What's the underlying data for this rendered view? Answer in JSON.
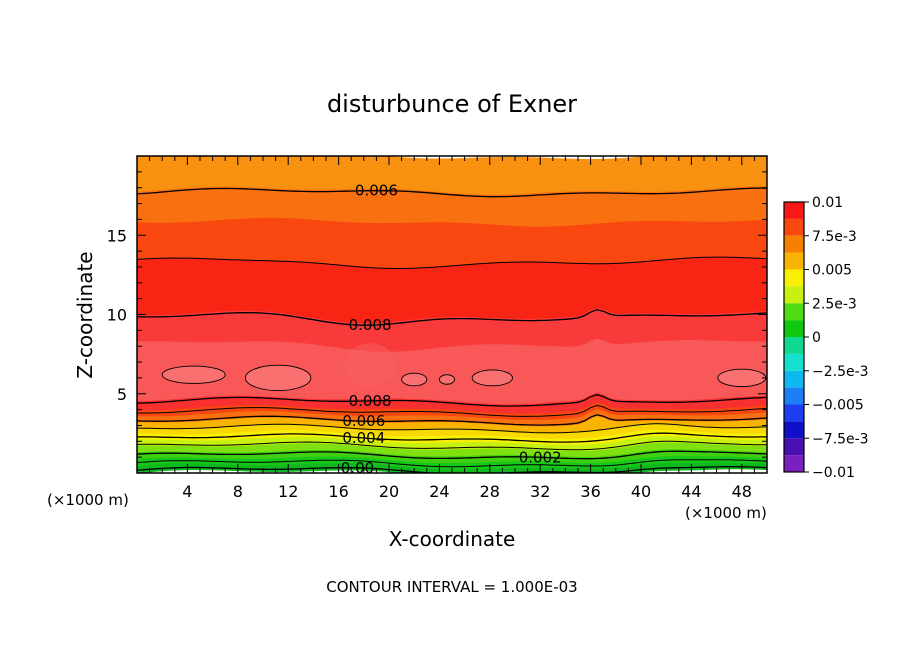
{
  "chart_data": {
    "type": "heatmap",
    "title": "disturbunce of Exner",
    "xlabel": "X-coordinate",
    "ylabel": "Z-coordinate",
    "x_unit_left": "(×1000 m)",
    "x_unit_right": "(×1000 m)",
    "footer": "CONTOUR INTERVAL = 1.000E-03",
    "xlim": [
      0,
      50
    ],
    "ylim": [
      0,
      20
    ],
    "x_ticks": [
      4,
      8,
      12,
      16,
      20,
      24,
      28,
      32,
      36,
      40,
      44,
      48
    ],
    "y_ticks": [
      5,
      10,
      15
    ],
    "colorbar": {
      "range": [
        -0.01,
        0.01
      ],
      "tick_labels": [
        "0.01",
        "7.5e-3",
        "0.005",
        "2.5e-3",
        "0",
        "−2.5e-3",
        "−0.005",
        "−7.5e-3",
        "−0.01"
      ],
      "tick_values": [
        0.01,
        0.0075,
        0.005,
        0.0025,
        0,
        -0.0025,
        -0.005,
        -0.0075,
        -0.01
      ],
      "bands": [
        {
          "from": -0.01,
          "to": -0.00875,
          "color": "#7a1fc0"
        },
        {
          "from": -0.00875,
          "to": -0.0075,
          "color": "#4a0fb0"
        },
        {
          "from": -0.0075,
          "to": -0.00625,
          "color": "#1010c8"
        },
        {
          "from": -0.00625,
          "to": -0.005,
          "color": "#1e3cf0"
        },
        {
          "from": -0.005,
          "to": -0.00375,
          "color": "#1e7ef5"
        },
        {
          "from": -0.00375,
          "to": -0.0025,
          "color": "#10b8f0"
        },
        {
          "from": -0.0025,
          "to": -0.00125,
          "color": "#14e0d0"
        },
        {
          "from": -0.00125,
          "to": 0,
          "color": "#10d890"
        },
        {
          "from": 0,
          "to": 0.00125,
          "color": "#10c810"
        },
        {
          "from": 0.00125,
          "to": 0.0025,
          "color": "#50dc10"
        },
        {
          "from": 0.0025,
          "to": 0.00375,
          "color": "#c8f010"
        },
        {
          "from": 0.00375,
          "to": 0.005,
          "color": "#f8f000"
        },
        {
          "from": 0.005,
          "to": 0.00625,
          "color": "#f8b400"
        },
        {
          "from": 0.00625,
          "to": 0.0075,
          "color": "#f88000"
        },
        {
          "from": 0.0075,
          "to": 0.00875,
          "color": "#f84810"
        },
        {
          "from": 0.00875,
          "to": 0.01,
          "color": "#f81818"
        }
      ]
    },
    "profile_z_values": [
      {
        "z": 0.0,
        "value": 0.0
      },
      {
        "z": 0.6,
        "value": 0.0005
      },
      {
        "z": 1.2,
        "value": 0.0015
      },
      {
        "z": 1.8,
        "value": 0.0025
      },
      {
        "z": 2.4,
        "value": 0.0035
      },
      {
        "z": 3.0,
        "value": 0.0048
      },
      {
        "z": 3.6,
        "value": 0.0062
      },
      {
        "z": 4.2,
        "value": 0.0072
      },
      {
        "z": 4.8,
        "value": 0.008
      },
      {
        "z": 6.0,
        "value": 0.0088
      },
      {
        "z": 8.0,
        "value": 0.0088
      },
      {
        "z": 10.0,
        "value": 0.008
      },
      {
        "z": 13.5,
        "value": 0.007
      },
      {
        "z": 17.5,
        "value": 0.006
      },
      {
        "z": 20.0,
        "value": 0.0052
      }
    ],
    "bands_by_height": [
      {
        "z_from": 17.8,
        "z_to": 20.0,
        "color": "#f89010"
      },
      {
        "z_from": 15.8,
        "z_to": 17.8,
        "color": "#f87010"
      },
      {
        "z_from": 13.4,
        "z_to": 15.8,
        "color": "#f84810"
      },
      {
        "z_from": 10.0,
        "z_to": 13.4,
        "color": "#f82414"
      },
      {
        "z_from": 8.2,
        "z_to": 10.0,
        "color": "#f83a3a"
      },
      {
        "z_from": 4.6,
        "z_to": 8.2,
        "color": "#f85858"
      },
      {
        "z_from": 4.0,
        "z_to": 4.6,
        "color": "#f83030"
      },
      {
        "z_from": 3.6,
        "z_to": 4.0,
        "color": "#f84810"
      },
      {
        "z_from": 3.2,
        "z_to": 3.6,
        "color": "#f87010"
      },
      {
        "z_from": 2.8,
        "z_to": 3.2,
        "color": "#f8b400"
      },
      {
        "z_from": 2.4,
        "z_to": 2.8,
        "color": "#f8d800"
      },
      {
        "z_from": 2.0,
        "z_to": 2.4,
        "color": "#f8f000"
      },
      {
        "z_from": 1.6,
        "z_to": 2.0,
        "color": "#c8f010"
      },
      {
        "z_from": 1.2,
        "z_to": 1.6,
        "color": "#80e010"
      },
      {
        "z_from": 0.8,
        "z_to": 1.2,
        "color": "#40d010"
      },
      {
        "z_from": 0.4,
        "z_to": 0.8,
        "color": "#18c818"
      },
      {
        "z_from": 0.0,
        "z_to": 0.4,
        "color": "#10b820"
      }
    ],
    "contour_lines": [
      {
        "value": 0.006,
        "label": "0.006",
        "z": 17.7,
        "label_x": 19.0
      },
      {
        "value": 0.007,
        "label": "",
        "z": 13.4
      },
      {
        "value": 0.008,
        "label": "0.008",
        "z": 9.9,
        "label_x": 18.5
      },
      {
        "value": 0.008,
        "label": "0.008",
        "z": 4.5,
        "label_x": 18.5
      },
      {
        "value": 0.007,
        "label": "",
        "z": 3.85
      },
      {
        "value": 0.006,
        "label": "0.006",
        "z": 3.3,
        "label_x": 18.0
      },
      {
        "value": 0.005,
        "label": "",
        "z": 2.8
      },
      {
        "value": 0.004,
        "label": "0.004",
        "z": 2.2,
        "label_x": 18.0
      },
      {
        "value": 0.003,
        "label": "",
        "z": 1.7
      },
      {
        "value": 0.002,
        "label": "0.002",
        "z": 1.1,
        "label_x": 32.0
      },
      {
        "value": 0.001,
        "label": "",
        "z": 0.6
      },
      {
        "value": 0.0,
        "label": "0.00",
        "z": 0.15,
        "label_x": 17.5
      }
    ],
    "closed_contours": [
      {
        "value": 0.009,
        "cx": 4.5,
        "cz": 6.2,
        "rx": 2.5,
        "rz": 0.55
      },
      {
        "value": 0.009,
        "cx": 11.2,
        "cz": 6.0,
        "rx": 2.6,
        "rz": 0.8
      },
      {
        "value": 0.009,
        "cx": 22.0,
        "cz": 5.9,
        "rx": 1.0,
        "rz": 0.4
      },
      {
        "value": 0.009,
        "cx": 24.6,
        "cz": 5.9,
        "rx": 0.6,
        "rz": 0.3
      },
      {
        "value": 0.009,
        "cx": 28.2,
        "cz": 6.0,
        "rx": 1.6,
        "rz": 0.5
      },
      {
        "value": 0.009,
        "cx": 48.0,
        "cz": 6.0,
        "rx": 1.9,
        "rz": 0.55
      }
    ]
  }
}
